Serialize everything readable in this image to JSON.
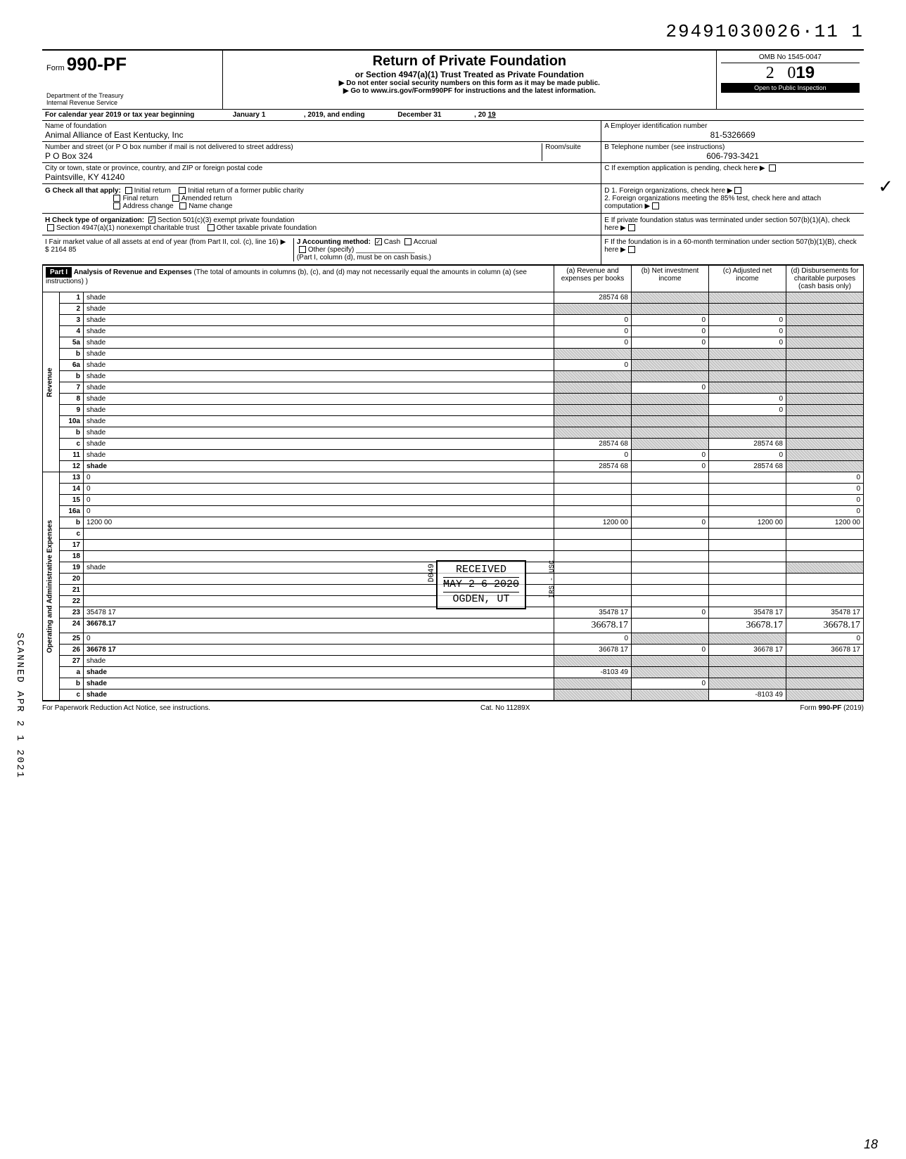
{
  "top_number": "29491030026·11  1",
  "form": {
    "prefix": "Form",
    "number": "990-PF"
  },
  "dept": {
    "l1": "Department of the Treasury",
    "l2": "Internal Revenue Service"
  },
  "header": {
    "title": "Return of Private Foundation",
    "subtitle": "or Section 4947(a)(1) Trust Treated as Private Foundation",
    "instr1": "▶ Do not enter social security numbers on this form as it may be made public.",
    "instr2": "▶ Go to www.irs.gov/Form990PF for instructions and the latest information."
  },
  "omb": "OMB No  1545-0047",
  "year": "2019",
  "open": "Open to Public Inspection",
  "calyear": {
    "label": "For calendar year 2019 or tax year beginning",
    "begin": "January 1",
    "mid": ", 2019, and ending",
    "end": "December 31",
    "yr_label": ", 20",
    "yr": "19"
  },
  "foundation": {
    "name_label": "Name of foundation",
    "name": "Animal Alliance of East Kentucky, Inc",
    "addr_label": "Number and street (or P O  box number if mail is not delivered to street address)",
    "room_label": "Room/suite",
    "addr": "P O  Box 324",
    "city_label": "City or town, state or province, country, and ZIP or foreign postal code",
    "city": "Paintsville, KY 41240"
  },
  "boxA": {
    "label": "A  Employer identification number",
    "val": "81-5326669"
  },
  "boxB": {
    "label": "B  Telephone number (see instructions)",
    "val": "606-793-3421"
  },
  "boxC": "C  If exemption application is pending, check here ▶",
  "boxD1": "D  1. Foreign organizations, check here",
  "boxD2": "2. Foreign organizations meeting the 85% test, check here and attach computation",
  "boxE": "E  If private foundation status was terminated under section 507(b)(1)(A), check here",
  "boxF": "F  If the foundation is in a 60-month termination under section 507(b)(1)(B), check here",
  "G": {
    "label": "G   Check all that apply:",
    "opts": [
      "Initial return",
      "Initial return of a former public charity",
      "Final return",
      "Amended return",
      "Address change",
      "Name change"
    ]
  },
  "H": {
    "label": "H   Check type of organization:",
    "opt1": "Section 501(c)(3) exempt private foundation",
    "opt2": "Section 4947(a)(1) nonexempt charitable trust",
    "opt3": "Other taxable private foundation"
  },
  "I": {
    "label": "I    Fair market value of all assets at end of year  (from Part II, col. (c), line 16) ▶  $",
    "val": "2164 85"
  },
  "J": {
    "label": "J   Accounting method:",
    "cash": "Cash",
    "accrual": "Accrual",
    "other": "Other (specify)",
    "note": "(Part I, column (d), must be on cash basis.)"
  },
  "part1": {
    "hdr": "Part I",
    "title": "Analysis of Revenue and Expenses",
    "note": "(The total of amounts in columns (b), (c), and (d) may not necessarily equal the amounts in column (a) (see instructions) )",
    "cols": {
      "a": "(a) Revenue and expenses per books",
      "b": "(b) Net investment income",
      "c": "(c) Adjusted net income",
      "d": "(d) Disbursements for charitable purposes (cash basis only)"
    }
  },
  "side": {
    "revenue": "Revenue",
    "exp": "Operating and Administrative Expenses"
  },
  "lines": [
    {
      "n": "1",
      "d": "shade",
      "a": "28574 68",
      "b": "shade",
      "c": "shade"
    },
    {
      "n": "2",
      "d": "shade",
      "a": "shade",
      "b": "shade",
      "c": "shade"
    },
    {
      "n": "3",
      "d": "shade",
      "a": "0",
      "b": "0",
      "c": "0"
    },
    {
      "n": "4",
      "d": "shade",
      "a": "0",
      "b": "0",
      "c": "0"
    },
    {
      "n": "5a",
      "d": "shade",
      "a": "0",
      "b": "0",
      "c": "0"
    },
    {
      "n": "b",
      "d": "shade",
      "a": "shade",
      "b": "shade",
      "c": "shade"
    },
    {
      "n": "6a",
      "d": "shade",
      "a": "0",
      "b": "shade",
      "c": "shade"
    },
    {
      "n": "b",
      "d": "shade",
      "a": "shade",
      "b": "shade",
      "c": "shade"
    },
    {
      "n": "7",
      "d": "shade",
      "a": "shade",
      "b": "0",
      "c": "shade"
    },
    {
      "n": "8",
      "d": "shade",
      "a": "shade",
      "b": "shade",
      "c": "0"
    },
    {
      "n": "9",
      "d": "shade",
      "a": "shade",
      "b": "shade",
      "c": "0"
    },
    {
      "n": "10a",
      "d": "shade",
      "a": "shade",
      "b": "shade",
      "c": "shade"
    },
    {
      "n": "b",
      "d": "shade",
      "a": "shade",
      "b": "shade",
      "c": "shade"
    },
    {
      "n": "c",
      "d": "shade",
      "a": "28574 68",
      "b": "shade",
      "c": "28574 68"
    },
    {
      "n": "11",
      "d": "shade",
      "a": "0",
      "b": "0",
      "c": "0"
    },
    {
      "n": "12",
      "d": "shade",
      "a": "28574 68",
      "b": "0",
      "c": "28574 68",
      "bold": true
    },
    {
      "n": "13",
      "d": "0",
      "a": "",
      "b": "",
      "c": ""
    },
    {
      "n": "14",
      "d": "0",
      "a": "",
      "b": "",
      "c": ""
    },
    {
      "n": "15",
      "d": "0",
      "a": "",
      "b": "",
      "c": ""
    },
    {
      "n": "16a",
      "d": "0",
      "a": "",
      "b": "",
      "c": ""
    },
    {
      "n": "b",
      "d": "1200 00",
      "a": "1200 00",
      "b": "0",
      "c": "1200 00"
    },
    {
      "n": "c",
      "d": "",
      "a": "",
      "b": "",
      "c": ""
    },
    {
      "n": "17",
      "d": "",
      "a": "",
      "b": "",
      "c": ""
    },
    {
      "n": "18",
      "d": "",
      "a": "",
      "b": "",
      "c": ""
    },
    {
      "n": "19",
      "d": "shade",
      "a": "",
      "b": "",
      "c": ""
    },
    {
      "n": "20",
      "d": "",
      "a": "",
      "b": "",
      "c": ""
    },
    {
      "n": "21",
      "d": "",
      "a": "",
      "b": "",
      "c": ""
    },
    {
      "n": "22",
      "d": "",
      "a": "",
      "b": "",
      "c": ""
    },
    {
      "n": "23",
      "d": "35478 17",
      "a": "35478 17",
      "b": "0",
      "c": "35478 17"
    },
    {
      "n": "24",
      "d": "36678.17",
      "a": "36678.17",
      "b": "",
      "c": "36678.17",
      "bold": true,
      "handA": true
    },
    {
      "n": "25",
      "d": "0",
      "a": "0",
      "b": "shade",
      "c": "shade"
    },
    {
      "n": "26",
      "d": "36678 17",
      "a": "36678 17",
      "b": "0",
      "c": "36678 17",
      "bold": true
    },
    {
      "n": "27",
      "d": "shade",
      "a": "shade",
      "b": "shade",
      "c": "shade"
    },
    {
      "n": "a",
      "d": "shade",
      "a": "-8103 49",
      "b": "shade",
      "c": "shade",
      "bold": true
    },
    {
      "n": "b",
      "d": "shade",
      "a": "shade",
      "b": "0",
      "c": "shade",
      "bold": true
    },
    {
      "n": "c",
      "d": "shade",
      "a": "shade",
      "b": "shade",
      "c": "-8103 49",
      "bold": true
    }
  ],
  "received": {
    "l1": "RECEIVED",
    "l2": "MAY 2 6 2020",
    "l3": "OGDEN, UT",
    "side1": "D049",
    "side2": "IRS - USC"
  },
  "scanned": "SCANNED APR 2 1 2021",
  "footer": {
    "left": "For Paperwork Reduction Act Notice, see instructions.",
    "mid": "Cat. No  11289X",
    "right": "Form 990-PF (2019)"
  },
  "pageno": "18"
}
